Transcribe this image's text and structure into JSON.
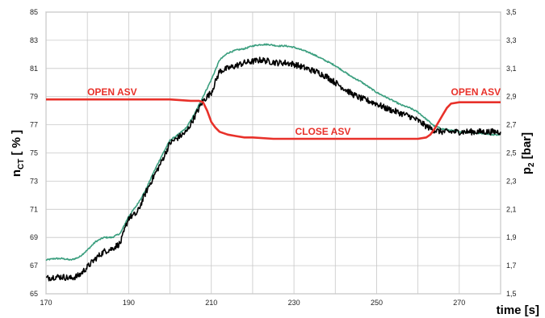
{
  "chart_data": {
    "type": "line",
    "title": "",
    "xlabel": "time  [s]",
    "ylabel_left_main": "n",
    "ylabel_left_sub": "CT",
    "ylabel_left_rest": " [ % ]",
    "ylabel_right_main": "p",
    "ylabel_right_sub": "2",
    "ylabel_right_rest": " [bar]",
    "xlim": [
      170,
      280
    ],
    "ylim_left": [
      65,
      85
    ],
    "ylim_right": [
      1.5,
      3.5
    ],
    "grid": true,
    "legend": "none",
    "x_ticks": [
      "170",
      "190",
      "210",
      "230",
      "250",
      "270"
    ],
    "x_tick_values": [
      170,
      190,
      210,
      230,
      250,
      270
    ],
    "x_minor_gridlines": [
      180,
      200,
      220,
      240,
      260,
      280
    ],
    "y_left_ticks": [
      "65",
      "67",
      "69",
      "71",
      "73",
      "75",
      "77",
      "79",
      "81",
      "83",
      "85"
    ],
    "y_left_tick_values": [
      65,
      67,
      69,
      71,
      73,
      75,
      77,
      79,
      81,
      83,
      85
    ],
    "y_right_ticks": [
      "1,5",
      "1,7",
      "1,9",
      "2,1",
      "2,3",
      "2,5",
      "2,7",
      "2,9",
      "3,1",
      "3,3",
      "3,5"
    ],
    "y_right_tick_values": [
      1.5,
      1.7,
      1.9,
      2.1,
      2.3,
      2.5,
      2.7,
      2.9,
      3.1,
      3.3,
      3.5
    ],
    "series": [
      {
        "axis": "left",
        "color": "#3a9e7e",
        "noise": 0.05,
        "x": [
          170,
          172,
          174,
          176,
          178,
          180,
          182,
          184,
          186,
          188,
          190,
          192,
          194,
          196,
          198,
          200,
          202,
          204,
          206,
          208,
          210,
          212,
          214,
          216,
          218,
          220,
          222,
          224,
          226,
          228,
          230,
          232,
          234,
          236,
          238,
          240,
          242,
          244,
          246,
          248,
          250,
          252,
          254,
          256,
          258,
          260,
          262,
          264,
          266,
          268,
          270,
          272,
          274,
          276,
          278,
          280
        ],
        "y": [
          67.4,
          67.5,
          67.5,
          67.4,
          67.6,
          68.1,
          68.7,
          69.0,
          69.0,
          69.3,
          70.5,
          71.3,
          72.3,
          73.6,
          74.8,
          75.9,
          76.3,
          76.8,
          77.8,
          79.0,
          80.2,
          81.6,
          82.1,
          82.3,
          82.4,
          82.6,
          82.7,
          82.7,
          82.6,
          82.6,
          82.5,
          82.3,
          82.1,
          81.8,
          81.5,
          81.2,
          80.8,
          80.4,
          80.1,
          79.7,
          79.3,
          79.0,
          78.7,
          78.4,
          78.2,
          77.9,
          77.4,
          76.9,
          76.7,
          76.6,
          76.5,
          76.5,
          76.4,
          76.4,
          76.3,
          76.3
        ]
      },
      {
        "axis": "left",
        "color": "#000000",
        "noise": 0.22,
        "x": [
          170,
          172,
          174,
          176,
          178,
          180,
          182,
          184,
          186,
          188,
          190,
          192,
          194,
          196,
          198,
          200,
          202,
          204,
          206,
          208,
          210,
          212,
          214,
          216,
          218,
          220,
          222,
          224,
          226,
          228,
          230,
          232,
          234,
          236,
          238,
          240,
          242,
          244,
          246,
          248,
          250,
          252,
          254,
          256,
          258,
          260,
          262,
          264,
          266,
          268,
          270,
          272,
          274,
          276,
          278,
          280
        ],
        "y": [
          66.1,
          66.2,
          66.2,
          66.1,
          66.3,
          66.9,
          67.5,
          68.0,
          68.2,
          68.6,
          70.4,
          70.7,
          72.1,
          73.3,
          74.4,
          75.7,
          76.1,
          76.5,
          77.6,
          78.7,
          79.3,
          80.8,
          81.0,
          81.2,
          81.4,
          81.5,
          81.6,
          81.5,
          81.4,
          81.4,
          81.3,
          81.1,
          80.9,
          80.7,
          80.4,
          80.0,
          79.6,
          79.2,
          78.9,
          78.7,
          78.5,
          78.2,
          78.0,
          77.8,
          77.6,
          77.3,
          76.9,
          76.6,
          76.5,
          76.5,
          76.5,
          76.5,
          76.5,
          76.5,
          76.5,
          76.5
        ]
      },
      {
        "axis": "right",
        "color": "#e8312a",
        "noise": 0,
        "x": [
          170,
          175,
          180,
          185,
          190,
          195,
          200,
          205,
          207,
          208,
          209,
          210,
          211,
          212,
          214,
          216,
          218,
          220,
          225,
          230,
          240,
          250,
          255,
          258,
          260,
          262,
          263,
          264,
          265,
          266,
          267,
          268,
          270,
          275,
          280
        ],
        "y": [
          2.88,
          2.88,
          2.88,
          2.88,
          2.88,
          2.88,
          2.88,
          2.87,
          2.87,
          2.86,
          2.8,
          2.72,
          2.68,
          2.65,
          2.63,
          2.62,
          2.61,
          2.61,
          2.6,
          2.6,
          2.6,
          2.6,
          2.6,
          2.6,
          2.6,
          2.61,
          2.63,
          2.67,
          2.72,
          2.77,
          2.82,
          2.85,
          2.86,
          2.86,
          2.86
        ]
      }
    ],
    "annotations": [
      {
        "text": "OPEN ASV",
        "x": 186,
        "y": 2.91,
        "color": "#e8312a"
      },
      {
        "text": "CLOSE ASV",
        "x": 237,
        "y": 2.63,
        "color": "#e8312a"
      },
      {
        "text": "OPEN ASV",
        "x": 274,
        "y": 2.91,
        "color": "#e8312a"
      }
    ]
  }
}
